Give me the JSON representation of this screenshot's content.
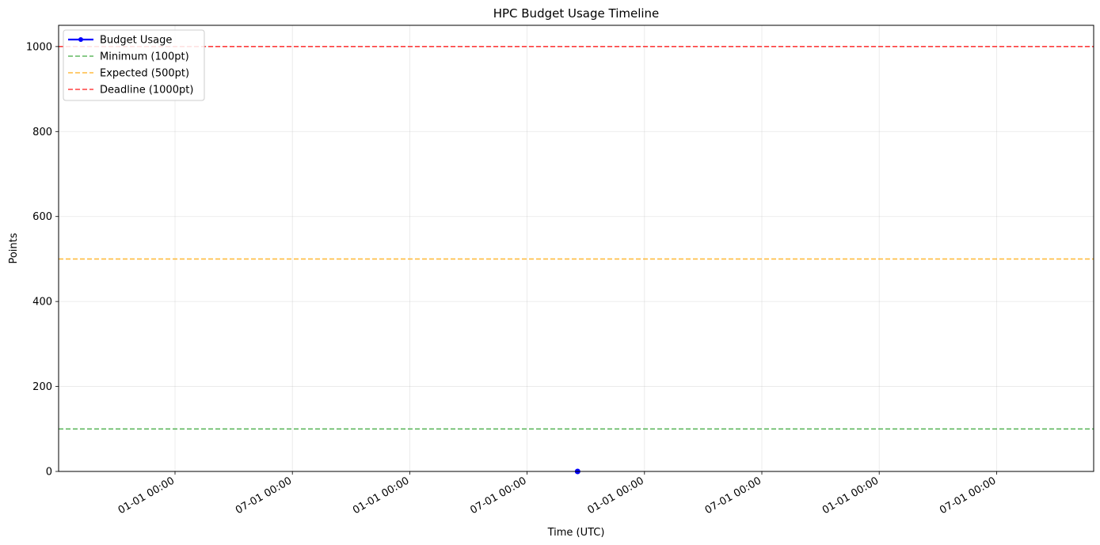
{
  "chart_data": {
    "type": "line",
    "title": "HPC Budget Usage Timeline",
    "xlabel": "Time (UTC)",
    "ylabel": "Points",
    "ylim": [
      0,
      1050
    ],
    "yticks": [
      0,
      200,
      400,
      600,
      800,
      1000
    ],
    "xticks": [
      "01-01 00:00",
      "07-01 00:00",
      "01-01 00:00",
      "07-01 00:00",
      "01-01 00:00",
      "07-01 00:00",
      "01-01 00:00",
      "07-01 00:00"
    ],
    "grid": true,
    "legend_position": "top-left",
    "series": [
      {
        "name": "Budget Usage",
        "color": "#0000ff",
        "style": "solid",
        "marker": "circle",
        "points": [
          {
            "x": "between 07-01 00:00 and 01-01 00:00",
            "y": 0
          }
        ]
      }
    ],
    "reference_lines": [
      {
        "name": "Minimum (100pt)",
        "y": 100,
        "color": "#2ca02c",
        "style": "dashed"
      },
      {
        "name": "Expected (500pt)",
        "y": 500,
        "color": "#ffa500",
        "style": "dashed"
      },
      {
        "name": "Deadline (1000pt)",
        "y": 1000,
        "color": "#ff0000",
        "style": "dashed"
      }
    ]
  }
}
